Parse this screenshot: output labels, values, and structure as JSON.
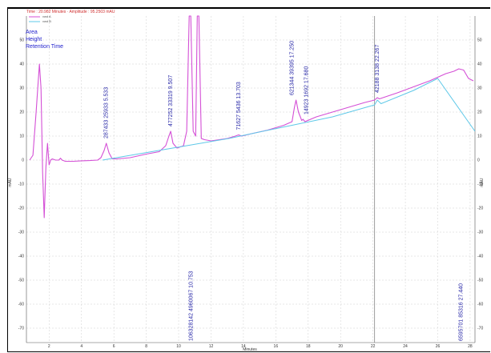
{
  "header": {
    "text": "Time : 20.982 Minutes · Amplitude : 95.2503 mAU"
  },
  "legend": {
    "trace_labels": [
      "vwd A",
      "vwd B"
    ],
    "items": [
      "Area",
      "Height",
      "Retention Time"
    ]
  },
  "colors": {
    "signal": "#d44fd6",
    "baseline": "#5ec8e8",
    "annotation": "#2a2aa8",
    "legend": "#1f1fcc",
    "marker": "#888888"
  },
  "chart_data": {
    "type": "line",
    "title": "",
    "xlabel": "Minutes",
    "ylabel": "mAU",
    "xlim": [
      0.6,
      28.3
    ],
    "ylim": [
      -76,
      60
    ],
    "x_ticks": [
      2,
      4,
      6,
      8,
      10,
      12,
      14,
      16,
      18,
      20,
      22,
      24,
      26,
      28
    ],
    "y_ticks": [
      -70,
      -60,
      -50,
      -40,
      -30,
      -20,
      -10,
      0,
      10,
      20,
      30,
      40,
      50
    ],
    "grid": true,
    "series": [
      {
        "type": "signal",
        "x": [
          0.8,
          1.0,
          1.2,
          1.4,
          1.5,
          1.6,
          1.7,
          1.8,
          1.9,
          2.0,
          2.1,
          2.2,
          2.4,
          2.6,
          2.7,
          2.8,
          3.0,
          3.5,
          4.0,
          4.5,
          5.0,
          5.2,
          5.4,
          5.533,
          5.7,
          5.9,
          6.2,
          7.0,
          8.0,
          8.8,
          9.2,
          9.4,
          9.507,
          9.65,
          9.9,
          10.3,
          10.5,
          10.65,
          10.75,
          10.9,
          11.05,
          11.15,
          11.25,
          11.4,
          11.6,
          12.0,
          13.0,
          13.5,
          13.703,
          13.9,
          14.5,
          15.5,
          16.5,
          17.0,
          17.15,
          17.25,
          17.4,
          17.6,
          17.68,
          17.8,
          18.5,
          19.5,
          20.5,
          21.5,
          22.1,
          22.267,
          22.4,
          23.5,
          24.5,
          25.5,
          26.5,
          27.0,
          27.3,
          27.6,
          27.9,
          28.2
        ],
        "y": [
          0,
          2,
          20,
          40,
          30,
          -5,
          -24,
          -3,
          7,
          -2,
          0,
          0.5,
          0,
          0,
          0.8,
          0,
          -0.5,
          -0.5,
          -0.3,
          -0.2,
          0,
          1,
          4,
          7,
          3,
          0.5,
          0.5,
          1,
          2.5,
          3.5,
          6,
          10,
          12,
          7,
          5,
          6,
          12,
          60,
          60,
          12,
          10,
          60,
          60,
          9,
          8.5,
          8,
          9,
          10,
          10.5,
          10,
          11,
          12.5,
          14.5,
          16,
          22,
          25,
          20,
          16.5,
          17,
          16,
          18,
          20,
          22,
          24,
          25,
          26,
          25.5,
          28,
          30.5,
          33,
          36,
          37,
          38,
          37.5,
          34,
          33
        ]
      },
      {
        "type": "baseline",
        "x": [
          5.3,
          10.5,
          13.1,
          15.2,
          17.0,
          19.5,
          22.1,
          22.27,
          22.5,
          24.5,
          26.0,
          28.3
        ],
        "y": [
          0,
          6,
          9,
          12,
          14.5,
          18,
          23,
          25,
          23.5,
          29,
          34,
          12
        ]
      }
    ],
    "peak_labels": [
      {
        "rt": 5.533,
        "text": "287433  25933  5.533"
      },
      {
        "rt": 9.507,
        "text": "477252  33319  9.507"
      },
      {
        "rt": 10.753,
        "text": "106328142  4960067  10.753"
      },
      {
        "rt": 13.703,
        "text": "71627  5436  13.703"
      },
      {
        "rt": 17.25,
        "text": "621344  39395  17.250"
      },
      {
        "rt": 17.68,
        "text": "14923  1692  17.680"
      },
      {
        "rt": 22.267,
        "text": "42188  3138  22.267"
      },
      {
        "rt": 27.44,
        "text": "6595701  85316  27.440"
      }
    ],
    "cursor_x": 22.1
  }
}
